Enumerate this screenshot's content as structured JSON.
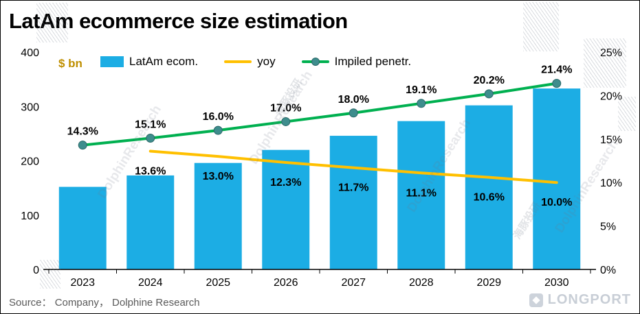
{
  "title": "LatAm ecommerce size estimation",
  "unit_label": "$ bn",
  "source_text": "Source： Company， Dolphine Research",
  "watermarks": {
    "en": "DolphinResearch",
    "cn": "海豚投研",
    "logo_text": "LONGPORT"
  },
  "colors": {
    "bar": "#1CADE4",
    "yoy": "#FFC000",
    "penetration": "#00B050",
    "marker": "#3E8D8D",
    "marker_edge": "#2A6868",
    "unit_label": "#BF8F00",
    "source": "#595959",
    "axis": "#000000",
    "logo": "#C8CED6"
  },
  "legend": [
    {
      "label": "LatAm ecom.",
      "type": "bar"
    },
    {
      "label": "yoy",
      "type": "line"
    },
    {
      "label": "Impiled penetr.",
      "type": "line-marker"
    }
  ],
  "chart_data": {
    "type": "bar+line combo",
    "title": "LatAm ecommerce size estimation",
    "categories": [
      "2023",
      "2024",
      "2025",
      "2026",
      "2027",
      "2028",
      "2029",
      "2030"
    ],
    "series": [
      {
        "name": "LatAm ecom.",
        "type": "bar",
        "axis": "left",
        "unit": "$ bn",
        "values": [
          152,
          173,
          196,
          220,
          246,
          273,
          302,
          333
        ]
      },
      {
        "name": "yoy",
        "type": "line",
        "axis": "right",
        "values": [
          null,
          13.6,
          13.0,
          12.3,
          11.7,
          11.1,
          10.6,
          10.0
        ],
        "labels": [
          "",
          "13.6%",
          "13.0%",
          "12.3%",
          "11.7%",
          "11.1%",
          "10.6%",
          "10.0%"
        ]
      },
      {
        "name": "Impiled penetr.",
        "type": "line",
        "axis": "right",
        "values": [
          14.3,
          15.1,
          16.0,
          17.0,
          18.0,
          19.1,
          20.2,
          21.4
        ],
        "labels": [
          "14.3%",
          "15.1%",
          "16.0%",
          "17.0%",
          "18.0%",
          "19.1%",
          "20.2%",
          "21.4%"
        ]
      }
    ],
    "left_axis": {
      "title": "$ bn",
      "min": 0,
      "max": 400,
      "ticks": [
        0,
        100,
        200,
        300,
        400
      ]
    },
    "right_axis": {
      "min": 0,
      "max": 25,
      "ticks": [
        "0%",
        "5%",
        "10%",
        "15%",
        "20%",
        "25%"
      ]
    },
    "grid": false,
    "legend_position": "top"
  }
}
